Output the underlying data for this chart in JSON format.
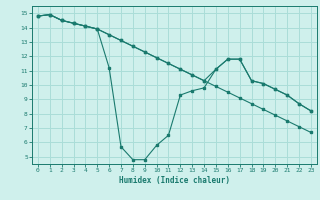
{
  "xlabel": "Humidex (Indice chaleur)",
  "ylabel": "",
  "background_color": "#cff0ec",
  "grid_color": "#aaddd8",
  "line_color": "#1a7a6e",
  "xlim": [
    -0.5,
    23.5
  ],
  "ylim": [
    4.5,
    15.5
  ],
  "yticks": [
    5,
    6,
    7,
    8,
    9,
    10,
    11,
    12,
    13,
    14,
    15
  ],
  "xticks": [
    0,
    1,
    2,
    3,
    4,
    5,
    6,
    7,
    8,
    9,
    10,
    11,
    12,
    13,
    14,
    15,
    16,
    17,
    18,
    19,
    20,
    21,
    22,
    23
  ],
  "series1_x": [
    0,
    1,
    2,
    3,
    4,
    5,
    6,
    7,
    8,
    9,
    10,
    11,
    12,
    13,
    14,
    15,
    16,
    17,
    18,
    19,
    20,
    21,
    22,
    23
  ],
  "series1_y": [
    14.8,
    14.9,
    14.5,
    14.3,
    14.1,
    13.9,
    11.2,
    5.7,
    4.8,
    4.8,
    5.8,
    6.5,
    9.3,
    9.6,
    9.8,
    11.1,
    11.8,
    11.8,
    10.3,
    10.1,
    9.7,
    9.3,
    8.7,
    8.2
  ],
  "series2_x": [
    0,
    1,
    2,
    3,
    4,
    5,
    6,
    7,
    8,
    9,
    10,
    11,
    12,
    13,
    14,
    15,
    16,
    17,
    18,
    19,
    20,
    21,
    22,
    23
  ],
  "series2_y": [
    14.8,
    14.9,
    14.5,
    14.3,
    14.1,
    13.9,
    13.5,
    13.1,
    12.7,
    12.3,
    11.9,
    11.5,
    11.1,
    10.7,
    10.3,
    9.9,
    9.5,
    9.1,
    8.7,
    8.3,
    7.9,
    7.5,
    7.1,
    6.7
  ],
  "series3_x": [
    0,
    1,
    2,
    3,
    4,
    5,
    6,
    7,
    8,
    9,
    10,
    11,
    12,
    13,
    14,
    15,
    16,
    17,
    18,
    19,
    20,
    21,
    22,
    23
  ],
  "series3_y": [
    14.8,
    14.9,
    14.5,
    14.3,
    14.1,
    13.9,
    13.5,
    13.1,
    12.7,
    12.3,
    11.9,
    11.5,
    11.1,
    10.7,
    10.3,
    11.1,
    11.8,
    11.8,
    10.3,
    10.1,
    9.7,
    9.3,
    8.7,
    8.2
  ]
}
